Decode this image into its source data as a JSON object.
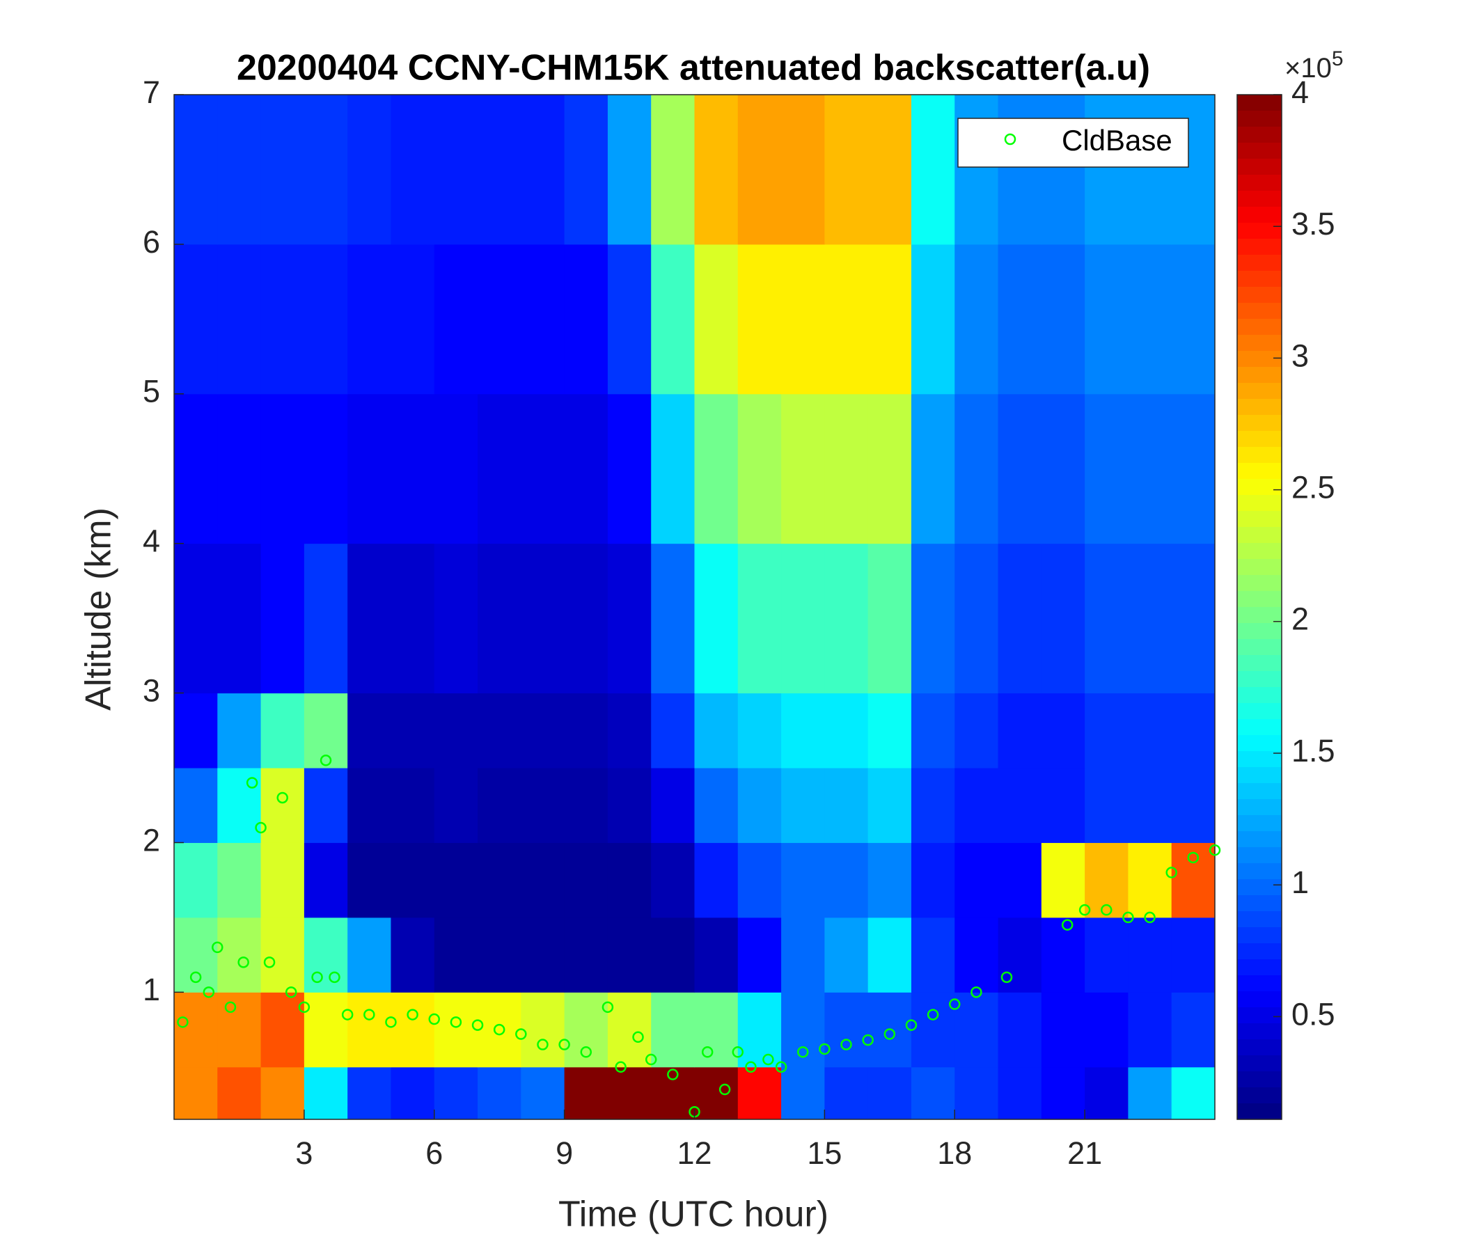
{
  "chart_data": {
    "type": "heatmap",
    "title": "20200404 CCNY-CHM15K attenuated backscatter(a.u)",
    "x_label": "Time (UTC hour)",
    "y_label": "Altitude (km)",
    "xlim": [
      0,
      24
    ],
    "ylim": [
      0.15,
      7
    ],
    "xticks": [
      3,
      6,
      9,
      12,
      15,
      18,
      21
    ],
    "yticks": [
      1,
      2,
      3,
      4,
      5,
      6,
      7
    ],
    "x_bins": [
      0,
      1,
      2,
      3,
      4,
      5,
      6,
      7,
      8,
      9,
      10,
      11,
      12,
      13,
      14,
      15,
      16,
      17,
      18,
      19,
      20,
      21,
      22,
      23,
      24
    ],
    "y_bins": [
      0.15,
      0.5,
      1,
      1.5,
      2,
      2.5,
      3,
      4,
      5,
      6,
      7
    ],
    "z": [
      [
        3,
        3.2,
        3,
        1.5,
        0.8,
        0.7,
        0.8,
        0.9,
        1,
        4,
        4,
        4,
        4,
        3.5,
        1,
        0.8,
        0.8,
        0.9,
        0.8,
        0.7,
        0.6,
        0.5,
        1.2,
        1.6
      ],
      [
        3,
        3,
        3.2,
        2.5,
        2.6,
        2.6,
        2.5,
        2.5,
        2.4,
        2.2,
        2.4,
        2,
        2,
        1.5,
        1,
        0.9,
        0.9,
        0.8,
        0.8,
        0.7,
        0.6,
        0.6,
        0.7,
        0.8
      ],
      [
        2,
        2.2,
        2.4,
        1.8,
        1.2,
        0.3,
        0.2,
        0.2,
        0.2,
        0.2,
        0.2,
        0.2,
        0.3,
        0.6,
        1.0,
        1.2,
        1.5,
        0.8,
        0.6,
        0.5,
        0.6,
        0.7,
        0.7,
        0.7
      ],
      [
        1.8,
        2,
        2.4,
        0.5,
        0.2,
        0.2,
        0.2,
        0.2,
        0.2,
        0.2,
        0.2,
        0.3,
        0.7,
        0.9,
        1.0,
        1.0,
        1.1,
        0.7,
        0.6,
        0.6,
        2.5,
        2.8,
        2.6,
        3.2
      ],
      [
        1.0,
        1.6,
        2.4,
        0.8,
        0.25,
        0.25,
        0.3,
        0.25,
        0.25,
        0.25,
        0.3,
        0.5,
        1.0,
        1.2,
        1.3,
        1.3,
        1.4,
        0.8,
        0.7,
        0.7,
        0.7,
        0.8,
        0.8,
        0.8
      ],
      [
        0.6,
        1.2,
        1.8,
        2.0,
        0.3,
        0.3,
        0.3,
        0.3,
        0.3,
        0.3,
        0.35,
        0.8,
        1.3,
        1.4,
        1.5,
        1.5,
        1.6,
        0.9,
        0.8,
        0.7,
        0.7,
        0.8,
        0.8,
        0.8
      ],
      [
        0.5,
        0.5,
        0.6,
        0.8,
        0.4,
        0.4,
        0.45,
        0.4,
        0.4,
        0.4,
        0.45,
        1.0,
        1.6,
        1.8,
        1.8,
        1.8,
        1.9,
        1.0,
        0.9,
        0.8,
        0.8,
        0.9,
        0.9,
        0.9
      ],
      [
        0.6,
        0.6,
        0.6,
        0.6,
        0.55,
        0.55,
        0.55,
        0.5,
        0.5,
        0.5,
        0.6,
        1.4,
        2.0,
        2.2,
        2.3,
        2.3,
        2.3,
        1.2,
        1.0,
        0.9,
        0.9,
        1.0,
        1.0,
        1.0
      ],
      [
        0.7,
        0.7,
        0.7,
        0.7,
        0.65,
        0.65,
        0.6,
        0.6,
        0.6,
        0.6,
        0.8,
        1.8,
        2.4,
        2.6,
        2.6,
        2.6,
        2.6,
        1.4,
        1.1,
        1.0,
        1.0,
        1.1,
        1.1,
        1.1
      ],
      [
        0.8,
        0.8,
        0.8,
        0.8,
        0.75,
        0.7,
        0.7,
        0.7,
        0.7,
        0.8,
        1.2,
        2.2,
        2.8,
        2.9,
        2.9,
        2.8,
        2.8,
        1.6,
        1.2,
        1.1,
        1.1,
        1.2,
        1.2,
        1.2
      ]
    ],
    "colormap": "jet",
    "clim": [
      0.11,
      4
    ],
    "cticks": [
      0.5,
      1,
      1.5,
      2,
      2.5,
      3,
      3.5,
      4
    ],
    "colorbar_multiplier": {
      "base": "×10",
      "exponent": "5"
    },
    "legend": "northeast",
    "series": [
      {
        "name": "CldBase",
        "color": "#00ff00",
        "marker": "open-circle",
        "x": [
          0.2,
          0.5,
          0.8,
          1.0,
          1.3,
          1.6,
          1.8,
          2.0,
          2.2,
          2.5,
          2.7,
          3.0,
          3.3,
          3.5,
          3.7,
          4.0,
          4.5,
          5.0,
          5.5,
          6.0,
          6.5,
          7.0,
          7.5,
          8.0,
          8.5,
          9.0,
          9.5,
          10.0,
          10.3,
          10.7,
          11.0,
          11.5,
          12.0,
          12.3,
          12.7,
          13.0,
          13.3,
          13.7,
          14.0,
          14.5,
          15.0,
          15.5,
          16.0,
          16.5,
          17.0,
          17.5,
          18.0,
          18.5,
          19.2,
          20.6,
          21.0,
          21.5,
          22.0,
          22.5,
          23.0,
          23.5,
          24.0
        ],
        "y": [
          0.8,
          1.1,
          1.0,
          1.3,
          0.9,
          1.2,
          2.4,
          2.1,
          1.2,
          2.3,
          1.0,
          0.9,
          1.1,
          2.55,
          1.1,
          0.85,
          0.85,
          0.8,
          0.85,
          0.82,
          0.8,
          0.78,
          0.75,
          0.72,
          0.65,
          0.65,
          0.6,
          0.9,
          0.5,
          0.7,
          0.55,
          0.45,
          0.2,
          0.6,
          0.35,
          0.6,
          0.5,
          0.55,
          0.5,
          0.6,
          0.62,
          0.65,
          0.68,
          0.72,
          0.78,
          0.85,
          0.92,
          1.0,
          1.1,
          1.45,
          1.55,
          1.55,
          1.5,
          1.5,
          1.8,
          1.9,
          1.95
        ]
      }
    ]
  }
}
